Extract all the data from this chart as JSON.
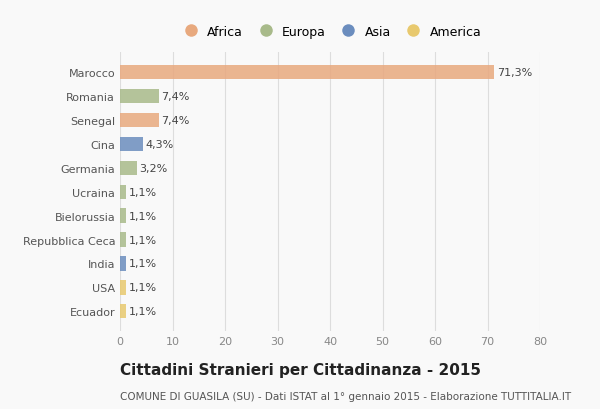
{
  "categories": [
    "Marocco",
    "Romania",
    "Senegal",
    "Cina",
    "Germania",
    "Ucraina",
    "Bielorussia",
    "Repubblica Ceca",
    "India",
    "USA",
    "Ecuador"
  ],
  "values": [
    71.3,
    7.4,
    7.4,
    4.3,
    3.2,
    1.1,
    1.1,
    1.1,
    1.1,
    1.1,
    1.1
  ],
  "labels": [
    "71,3%",
    "7,4%",
    "7,4%",
    "4,3%",
    "3,2%",
    "1,1%",
    "1,1%",
    "1,1%",
    "1,1%",
    "1,1%",
    "1,1%"
  ],
  "colors": [
    "#E8A97E",
    "#A8BA8A",
    "#E8A97E",
    "#6B8DBE",
    "#A8BA8A",
    "#A8BA8A",
    "#A8BA8A",
    "#A8BA8A",
    "#6B8DBE",
    "#E8C96E",
    "#E8C96E"
  ],
  "legend_labels": [
    "Africa",
    "Europa",
    "Asia",
    "America"
  ],
  "legend_colors": [
    "#E8A97E",
    "#A8BA8A",
    "#6B8DBE",
    "#E8C96E"
  ],
  "title": "Cittadini Stranieri per Cittadinanza - 2015",
  "subtitle": "COMUNE DI GUASILA (SU) - Dati ISTAT al 1° gennaio 2015 - Elaborazione TUTTITALIA.IT",
  "xlim": [
    0,
    80
  ],
  "xticks": [
    0,
    10,
    20,
    30,
    40,
    50,
    60,
    70,
    80
  ],
  "background_color": "#f9f9f9",
  "grid_color": "#dddddd",
  "bar_height": 0.6,
  "label_fontsize": 8,
  "tick_fontsize": 8,
  "title_fontsize": 11,
  "subtitle_fontsize": 7.5
}
